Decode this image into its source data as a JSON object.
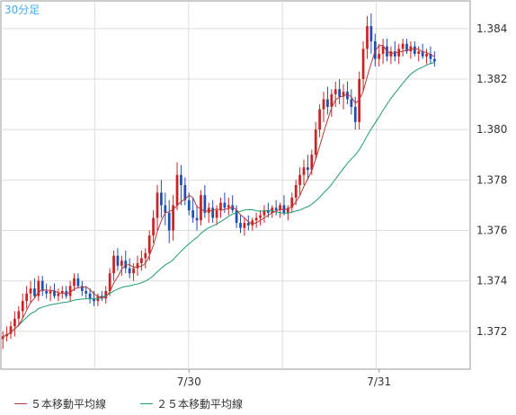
{
  "chart_data": {
    "type": "candlestick",
    "timeframe_label": "30分足",
    "x_tick_labels": [
      {
        "label": "7/30",
        "index": 47
      },
      {
        "label": "7/31",
        "index": 95
      }
    ],
    "y_ticks": [
      "1.372",
      "1.374",
      "1.376",
      "1.378",
      "1.380",
      "1.382",
      "1.384"
    ],
    "ylim": [
      1.3705,
      1.3851
    ],
    "xlim": [
      -0.5,
      118
    ],
    "grid": true,
    "colors": {
      "up": "#cc2222",
      "down": "#1f4fb0",
      "ma5": "#b23c3c",
      "ma25": "#1e9e6e",
      "grid": "#dddddd",
      "frame": "#999999",
      "timeframe": "#44aaff"
    },
    "series": [
      {
        "name": "ohlc",
        "values": [
          [
            1.3717,
            1.372,
            1.3713,
            1.3718
          ],
          [
            1.3718,
            1.3722,
            1.3716,
            1.3719
          ],
          [
            1.3719,
            1.3724,
            1.3717,
            1.3722
          ],
          [
            1.3722,
            1.3728,
            1.3718,
            1.3725
          ],
          [
            1.3725,
            1.373,
            1.3722,
            1.3728
          ],
          [
            1.3728,
            1.3735,
            1.3725,
            1.3732
          ],
          [
            1.3732,
            1.3738,
            1.3729,
            1.3735
          ],
          [
            1.3735,
            1.374,
            1.3731,
            1.3737
          ],
          [
            1.3737,
            1.3741,
            1.3733,
            1.3734
          ],
          [
            1.3734,
            1.3742,
            1.3732,
            1.374
          ],
          [
            1.374,
            1.3742,
            1.3734,
            1.3736
          ],
          [
            1.3736,
            1.3739,
            1.3733,
            1.3735
          ],
          [
            1.3735,
            1.3738,
            1.3732,
            1.3736
          ],
          [
            1.3736,
            1.3739,
            1.3733,
            1.3734
          ],
          [
            1.3734,
            1.3737,
            1.3732,
            1.3735
          ],
          [
            1.3735,
            1.3738,
            1.3733,
            1.3736
          ],
          [
            1.3736,
            1.3738,
            1.3733,
            1.3734
          ],
          [
            1.3734,
            1.374,
            1.3732,
            1.3738
          ],
          [
            1.3738,
            1.3743,
            1.3736,
            1.3741
          ],
          [
            1.3741,
            1.3743,
            1.3737,
            1.3738
          ],
          [
            1.3738,
            1.374,
            1.3734,
            1.3736
          ],
          [
            1.3736,
            1.3738,
            1.3733,
            1.3735
          ],
          [
            1.3735,
            1.3737,
            1.3731,
            1.3733
          ],
          [
            1.3733,
            1.3736,
            1.373,
            1.3732
          ],
          [
            1.3732,
            1.3735,
            1.373,
            1.3734
          ],
          [
            1.3734,
            1.3736,
            1.3732,
            1.3733
          ],
          [
            1.3733,
            1.3738,
            1.3731,
            1.3736
          ],
          [
            1.3736,
            1.3745,
            1.3734,
            1.3743
          ],
          [
            1.3743,
            1.3752,
            1.374,
            1.375
          ],
          [
            1.375,
            1.3753,
            1.3744,
            1.3746
          ],
          [
            1.3746,
            1.375,
            1.3742,
            1.3748
          ],
          [
            1.3748,
            1.3752,
            1.3743,
            1.3745
          ],
          [
            1.3745,
            1.3749,
            1.3741,
            1.3743
          ],
          [
            1.3743,
            1.3747,
            1.374,
            1.3745
          ],
          [
            1.3745,
            1.375,
            1.3742,
            1.3747
          ],
          [
            1.3747,
            1.3752,
            1.3744,
            1.3749
          ],
          [
            1.3749,
            1.3753,
            1.3745,
            1.3751
          ],
          [
            1.3751,
            1.376,
            1.3748,
            1.3758
          ],
          [
            1.3758,
            1.3768,
            1.3755,
            1.3765
          ],
          [
            1.3765,
            1.3778,
            1.376,
            1.3775
          ],
          [
            1.3775,
            1.378,
            1.3765,
            1.377
          ],
          [
            1.377,
            1.3775,
            1.3762,
            1.3767
          ],
          [
            1.3767,
            1.3772,
            1.3755,
            1.376
          ],
          [
            1.376,
            1.3774,
            1.3756,
            1.377
          ],
          [
            1.377,
            1.3787,
            1.3768,
            1.3782
          ],
          [
            1.3782,
            1.3786,
            1.377,
            1.3778
          ],
          [
            1.3778,
            1.3781,
            1.377,
            1.3772
          ],
          [
            1.3772,
            1.3775,
            1.3766,
            1.3768
          ],
          [
            1.3768,
            1.3773,
            1.3763,
            1.3765
          ],
          [
            1.3765,
            1.377,
            1.376,
            1.3764
          ],
          [
            1.3764,
            1.3776,
            1.3762,
            1.3774
          ],
          [
            1.3774,
            1.3778,
            1.3765,
            1.3767
          ],
          [
            1.3767,
            1.3771,
            1.3763,
            1.3769
          ],
          [
            1.3769,
            1.3772,
            1.3763,
            1.3765
          ],
          [
            1.3765,
            1.377,
            1.3762,
            1.3768
          ],
          [
            1.3768,
            1.3773,
            1.3765,
            1.3771
          ],
          [
            1.3771,
            1.3775,
            1.3767,
            1.3769
          ],
          [
            1.3769,
            1.3773,
            1.3766,
            1.377
          ],
          [
            1.377,
            1.3774,
            1.3767,
            1.3768
          ],
          [
            1.3768,
            1.377,
            1.3761,
            1.3763
          ],
          [
            1.3763,
            1.3766,
            1.3759,
            1.3761
          ],
          [
            1.3761,
            1.3765,
            1.3758,
            1.3763
          ],
          [
            1.3763,
            1.3766,
            1.376,
            1.3762
          ],
          [
            1.3762,
            1.3765,
            1.376,
            1.3764
          ],
          [
            1.3764,
            1.3767,
            1.3761,
            1.3765
          ],
          [
            1.3765,
            1.3768,
            1.3762,
            1.3766
          ],
          [
            1.3766,
            1.377,
            1.3763,
            1.3768
          ],
          [
            1.3768,
            1.3771,
            1.3765,
            1.3767
          ],
          [
            1.3767,
            1.377,
            1.3765,
            1.3769
          ],
          [
            1.3769,
            1.3772,
            1.3766,
            1.3768
          ],
          [
            1.3768,
            1.3771,
            1.3765,
            1.377
          ],
          [
            1.377,
            1.3774,
            1.3766,
            1.3767
          ],
          [
            1.3767,
            1.377,
            1.3764,
            1.3769
          ],
          [
            1.3769,
            1.3775,
            1.3767,
            1.3773
          ],
          [
            1.3773,
            1.378,
            1.377,
            1.3778
          ],
          [
            1.3778,
            1.3785,
            1.3774,
            1.3782
          ],
          [
            1.3782,
            1.3788,
            1.3778,
            1.3785
          ],
          [
            1.3785,
            1.379,
            1.378,
            1.3784
          ],
          [
            1.3784,
            1.3792,
            1.3782,
            1.379
          ],
          [
            1.379,
            1.3803,
            1.3788,
            1.38
          ],
          [
            1.38,
            1.381,
            1.3797,
            1.3808
          ],
          [
            1.3808,
            1.3815,
            1.3803,
            1.3812
          ],
          [
            1.3812,
            1.3817,
            1.3806,
            1.3809
          ],
          [
            1.3809,
            1.3816,
            1.3805,
            1.3814
          ],
          [
            1.3814,
            1.3819,
            1.3809,
            1.3816
          ],
          [
            1.3816,
            1.382,
            1.381,
            1.3813
          ],
          [
            1.3813,
            1.3818,
            1.3808,
            1.3815
          ],
          [
            1.3815,
            1.3819,
            1.381,
            1.3812
          ],
          [
            1.3812,
            1.3816,
            1.3806,
            1.3809
          ],
          [
            1.3809,
            1.3813,
            1.38,
            1.3803
          ],
          [
            1.3803,
            1.3823,
            1.38,
            1.382
          ],
          [
            1.382,
            1.3835,
            1.3815,
            1.3832
          ],
          [
            1.3832,
            1.3845,
            1.3828,
            1.3841
          ],
          [
            1.3841,
            1.3846,
            1.383,
            1.3835
          ],
          [
            1.3835,
            1.3838,
            1.3825,
            1.3828
          ],
          [
            1.3828,
            1.3834,
            1.3825,
            1.383
          ],
          [
            1.383,
            1.3836,
            1.3826,
            1.3833
          ],
          [
            1.3833,
            1.3836,
            1.3827,
            1.3829
          ],
          [
            1.3829,
            1.3833,
            1.3826,
            1.3831
          ],
          [
            1.3831,
            1.3835,
            1.3827,
            1.3829
          ],
          [
            1.3829,
            1.3834,
            1.3826,
            1.3832
          ],
          [
            1.3832,
            1.3836,
            1.3829,
            1.3834
          ],
          [
            1.3834,
            1.3836,
            1.383,
            1.3831
          ],
          [
            1.3831,
            1.3835,
            1.3828,
            1.3833
          ],
          [
            1.3833,
            1.3835,
            1.3829,
            1.383
          ],
          [
            1.383,
            1.3833,
            1.3827,
            1.3831
          ],
          [
            1.3831,
            1.3834,
            1.3828,
            1.3829
          ],
          [
            1.3829,
            1.3832,
            1.3826,
            1.383
          ],
          [
            1.383,
            1.3833,
            1.3826,
            1.3828
          ],
          [
            1.3828,
            1.3831,
            1.3825,
            1.3827
          ]
        ]
      },
      {
        "name": "５本移動平均線",
        "type": "line"
      },
      {
        "name": "２５本移動平均線",
        "type": "line"
      }
    ]
  }
}
